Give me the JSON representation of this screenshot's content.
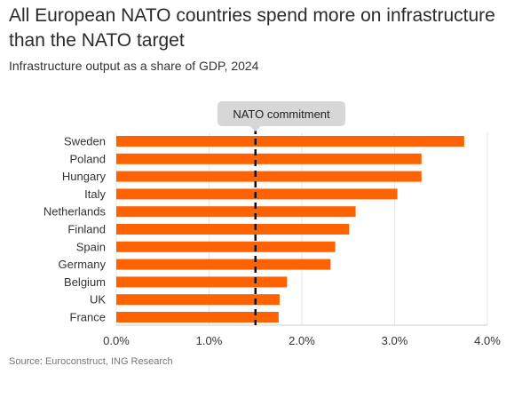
{
  "header": {
    "title": "All European NATO countries spend more on infrastructure than the NATO target",
    "subtitle": "Infrastructure output as a share of GDP, 2024"
  },
  "footer": {
    "source": "Source: Euroconstruct, ING Research"
  },
  "chart_data": {
    "type": "bar",
    "orientation": "horizontal",
    "categories": [
      "Sweden",
      "Poland",
      "Hungary",
      "Italy",
      "Netherlands",
      "Finland",
      "Spain",
      "Germany",
      "Belgium",
      "UK",
      "France"
    ],
    "series": [
      {
        "values": [
          3.75,
          3.29,
          3.29,
          3.03,
          2.58,
          2.51,
          2.36,
          2.31,
          1.84,
          1.76,
          1.75
        ]
      }
    ],
    "xlim": [
      0,
      4.0
    ],
    "ticks": [
      "0.0%",
      "1.0%",
      "2.0%",
      "3.0%",
      "4.0%"
    ],
    "tick_values": [
      0,
      1,
      2,
      3,
      4
    ],
    "grid": true,
    "bar_color": "#ff6200",
    "reference_line": {
      "value": 1.5,
      "label": "NATO commitment",
      "style": "dashed"
    }
  }
}
